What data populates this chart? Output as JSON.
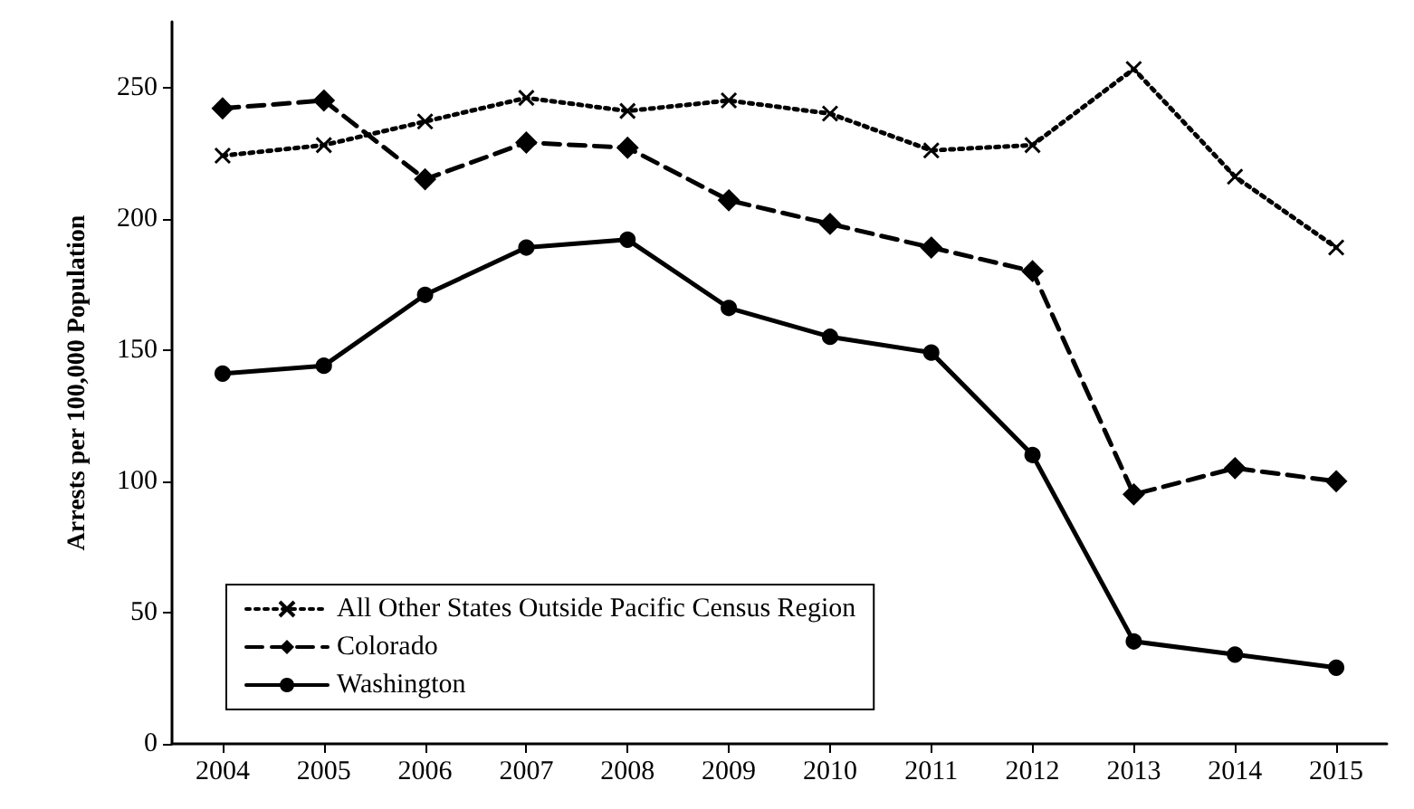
{
  "chart_data": {
    "type": "line",
    "ylabel": "Arrests per 100,000 Population",
    "categories": [
      "2004",
      "2005",
      "2006",
      "2007",
      "2008",
      "2009",
      "2010",
      "2011",
      "2012",
      "2013",
      "2014",
      "2015"
    ],
    "series": [
      {
        "name": "All Other States Outside Pacific Census Region",
        "color": "#000000",
        "marker": "cross",
        "line_style": "dotted",
        "values": [
          224,
          228,
          237,
          246,
          241,
          245,
          240,
          226,
          228,
          257,
          216,
          189
        ]
      },
      {
        "name": "Colorado",
        "color": "#000000",
        "marker": "diamond",
        "line_style": "dashed",
        "values": [
          242,
          245,
          215,
          229,
          227,
          207,
          198,
          189,
          180,
          95,
          105,
          100
        ]
      },
      {
        "name": "Washington",
        "color": "#000000",
        "marker": "circle",
        "line_style": "solid",
        "values": [
          141,
          144,
          171,
          189,
          192,
          166,
          155,
          149,
          110,
          39,
          34,
          29
        ]
      }
    ],
    "ylim": [
      0,
      275
    ],
    "yticks": [
      0,
      50,
      100,
      150,
      200,
      250
    ],
    "grid": false,
    "legend": "bottom left"
  }
}
